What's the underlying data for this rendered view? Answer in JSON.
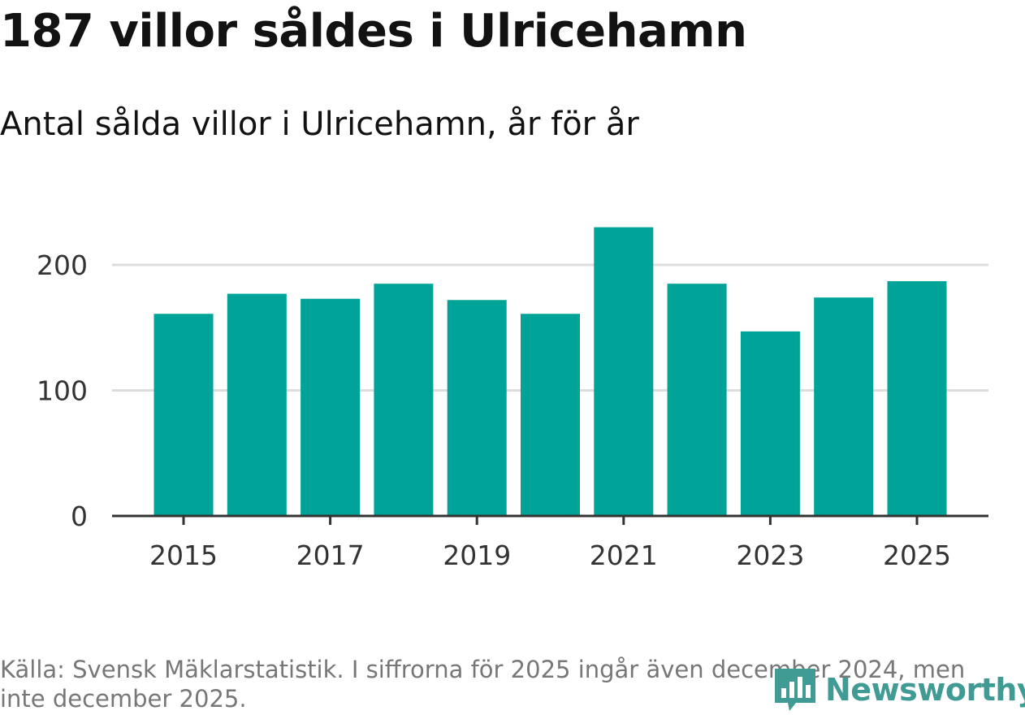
{
  "chart_data": {
    "type": "bar",
    "title": "187 villor såldes i Ulricehamn",
    "subtitle": "Antal sålda villor i Ulricehamn, år för år",
    "categories": [
      "2015",
      "2016",
      "2017",
      "2018",
      "2019",
      "2020",
      "2021",
      "2022",
      "2023",
      "2024",
      "2025"
    ],
    "values": [
      161,
      177,
      173,
      185,
      172,
      161,
      230,
      185,
      147,
      174,
      187
    ],
    "x_tick_labels": [
      "2015",
      "2017",
      "2019",
      "2021",
      "2023",
      "2025"
    ],
    "y_ticks": [
      0,
      100,
      200
    ],
    "ylim": [
      0,
      230
    ],
    "xlabel": "",
    "ylabel": "",
    "grid": true,
    "bar_color": "#00a398",
    "source": "Källa: Svensk Mäklarstatistik. I siffrorna för 2025 ingår även december 2024, men inte december 2025.",
    "logo": "Newsworthy"
  },
  "colors": {
    "bar": "#00a398",
    "logo": "#3f9b93",
    "grid": "#dddddd",
    "axis": "#333333"
  }
}
